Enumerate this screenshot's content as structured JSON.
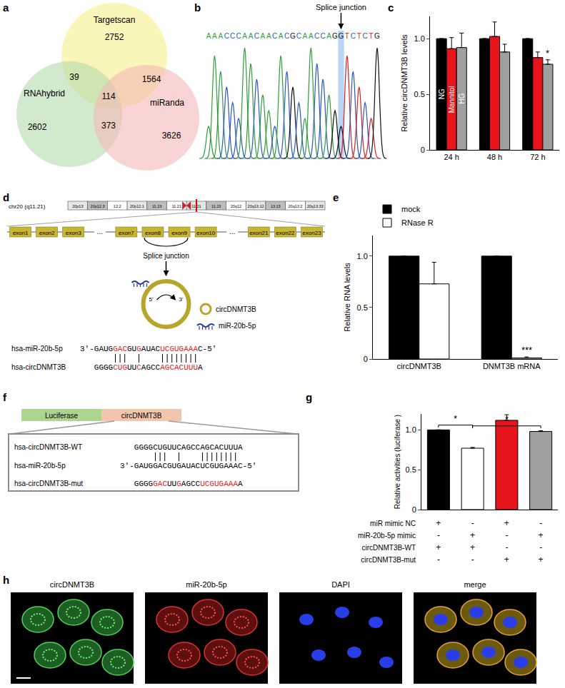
{
  "chart_data": [
    {
      "label": "c",
      "type": "bar",
      "categories": [
        "24 h",
        "48 h",
        "72 h"
      ],
      "series": [
        {
          "name": "NG",
          "color": "#000000",
          "values": [
            1,
            1,
            1
          ],
          "errors": [
            0,
            0,
            0
          ]
        },
        {
          "name": "Mannitol",
          "color": "#e8141b",
          "values": [
            0.91,
            1.02,
            0.83
          ],
          "errors": [
            0.1,
            0.13,
            0.05
          ]
        },
        {
          "name": "HG",
          "color": "#a0a0a0",
          "values": [
            0.92,
            0.88,
            0.77
          ],
          "errors": [
            0.13,
            0.07,
            0.04
          ]
        }
      ],
      "ylabel": "Relative circDNMT3B levels",
      "ylim": [
        0,
        1.2
      ],
      "yticks": [
        0,
        0.5,
        {
          "value": 1,
          "label": "1.0"
        }
      ],
      "annotations": [
        {
          "text": "*",
          "category": 2,
          "series": 2
        }
      ]
    },
    {
      "label": "e",
      "type": "bar",
      "categories": [
        "circDNMT3B",
        "DNMT3B mRNA"
      ],
      "series": [
        {
          "name": "mock",
          "color": "#000000",
          "values": [
            1,
            1
          ],
          "errors": [
            0,
            0
          ]
        },
        {
          "name": "RNase R",
          "color": "#ffffff",
          "values": [
            0.73,
            0.01
          ],
          "errors": [
            0.21,
            0.01
          ]
        }
      ],
      "ylabel": "Relative RNA levels",
      "ylim": [
        0,
        1.2
      ],
      "yticks": [
        0,
        0.5,
        {
          "value": 1,
          "label": "1.0"
        }
      ],
      "legend": "top-left",
      "annotations": [
        {
          "text": "***",
          "category": 1,
          "series": 1
        }
      ]
    },
    {
      "label": "g",
      "type": "bar",
      "categories": [
        null,
        null,
        null,
        null
      ],
      "values": [
        1,
        0.77,
        1.12,
        0.98
      ],
      "errors": [
        0,
        0.01,
        0.07,
        0.01
      ],
      "colors": [
        "#000000",
        "#ffffff",
        "#e8141b",
        "#a0a0a0"
      ],
      "ylabel": "Relative activities (luciferase )",
      "ylim": [
        0,
        1.2
      ],
      "yticks": [
        0,
        0.5,
        {
          "value": 1,
          "label": "1.0"
        }
      ],
      "tick_labels": "y",
      "significance": [
        {
          "from": 0,
          "to": 1,
          "text": "*"
        },
        {
          "from": 1,
          "to": 3,
          "text": "*"
        }
      ],
      "conditions": [
        {
          "label": "miR mimic NC",
          "marks": [
            "+",
            "-",
            "+",
            "-"
          ]
        },
        {
          "label": "miR-20b-5p mimic",
          "marks": [
            "-",
            "+",
            "-",
            "+"
          ]
        },
        {
          "label": "circDNMT3B-WT",
          "marks": [
            "+",
            "+",
            "-",
            "-"
          ]
        },
        {
          "label": "circDNMT3B-mut",
          "marks": [
            "-",
            "-",
            "+",
            "+"
          ]
        }
      ]
    }
  ],
  "venn": {
    "label": "a",
    "sets": [
      "Targetscan",
      "RNAhybrid",
      "miRanda"
    ],
    "colors": [
      "#f6f08c",
      "#b3dcae",
      "#f5b7b7"
    ],
    "regions": [
      {
        "sets": [
          "Targetscan"
        ],
        "value": 2752
      },
      {
        "sets": [
          "RNAhybrid"
        ],
        "value": 2602
      },
      {
        "sets": [
          "miRanda"
        ],
        "value": 3626
      },
      {
        "sets": [
          "Targetscan",
          "RNAhybrid"
        ],
        "value": 39
      },
      {
        "sets": [
          "Targetscan",
          "miRanda"
        ],
        "value": 1564
      },
      {
        "sets": [
          "RNAhybrid",
          "miRanda"
        ],
        "value": 373
      },
      {
        "sets": [
          "Targetscan",
          "RNAhybrid",
          "miRanda"
        ],
        "value": 114
      }
    ]
  },
  "chromatogram": {
    "label": "b",
    "sequence": "AAACCCAACAACACGCAACCAGGTCTCTG",
    "junction_index": 22,
    "annotation": "Splice junction",
    "colors": {
      "A": "#2e9e3a",
      "C": "#2a56c6",
      "G": "#111111",
      "T": "#d62020"
    }
  },
  "diagram": {
    "label": "d",
    "chromosome": "chr20 (q11.21)",
    "bands": {
      "p": [
        "20p13",
        "20p12.3",
        "12.2",
        "20p12.1",
        "11.23",
        "11.21"
      ],
      "q": [
        "11.21",
        "11.23",
        "20q12",
        "20q13.12",
        "13.13",
        "20q13.2",
        "20q13.33"
      ]
    },
    "exons": [
      "exon1",
      "exon2",
      "exon3",
      "...",
      "exon7",
      "exon8",
      "exon9",
      "exon10",
      "...",
      "exon21",
      "exon22",
      "exon23"
    ],
    "circle_exons": [
      "exon8",
      "exon9"
    ],
    "junction": "Splice junction",
    "ends": [
      "5'",
      "3'"
    ],
    "legend": [
      "circDNMT3B",
      "miR-20b-5p"
    ],
    "alignment": [
      {
        "name": "hsa-miR-20b-5p",
        "segments": [
          {
            "text": "3'-GAUG"
          },
          {
            "text": "GAC",
            "highlight": true
          },
          {
            "text": "GU"
          },
          {
            "text": "G",
            "highlight": true
          },
          {
            "text": "AUAC"
          },
          {
            "text": "UCGUGAAA",
            "highlight": true
          },
          {
            "text": "C-5'"
          }
        ]
      },
      {
        "name": "hsa-circDNMT3B",
        "segments": [
          {
            "text": "GGGG"
          },
          {
            "text": "CUG",
            "highlight": true
          },
          {
            "text": "UU"
          },
          {
            "text": "C",
            "highlight": true
          },
          {
            "text": "AGCC"
          },
          {
            "text": "AGCACUUU",
            "highlight": true
          },
          {
            "text": "A"
          }
        ]
      }
    ]
  },
  "construct": {
    "label": "f",
    "boxes": [
      "Luciferase",
      "circDNMT3B"
    ],
    "rows": [
      {
        "name": "hsa-circDNMT3B-WT",
        "segments": [
          {
            "text": "GGGGCUGUUCAGCCAGCACUUUA"
          }
        ]
      },
      {
        "name": "hsa-miR-20b-5p",
        "segments": [
          {
            "text": "3'-GAUGGACGUGAUACUCGUGAAAC-5'"
          }
        ]
      },
      {
        "name": "hsa-circDNMT3B-mut",
        "segments": [
          {
            "text": "GGGG"
          },
          {
            "text": "GAC",
            "highlight": true
          },
          {
            "text": "UU"
          },
          {
            "text": "G",
            "highlight": true
          },
          {
            "text": "AGCC"
          },
          {
            "text": "UCGUGAAA",
            "highlight": true
          },
          {
            "text": "A"
          }
        ]
      }
    ]
  },
  "images": {
    "label": "h",
    "channels": [
      "circDNMT3B",
      "miR-20b-5p",
      "DAPI",
      "merge"
    ]
  }
}
